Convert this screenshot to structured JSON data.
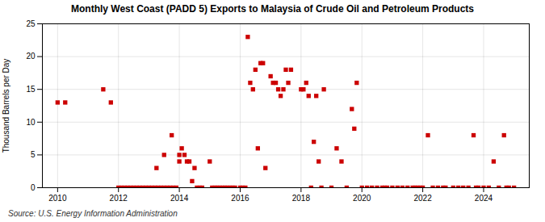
{
  "chart_data": {
    "type": "scatter",
    "title": "Monthly West Coast (PADD 5) Exports to Malaysia of Crude Oil and Petroleum Products",
    "ylabel": "Thousand Barrels per Day",
    "annotations": [
      "Source: U.S. Energy Information Administration"
    ],
    "color": "#cc0000",
    "marker": "square",
    "grid": true,
    "xlim": [
      2009.5,
      2025.5
    ],
    "ylim": [
      0,
      25
    ],
    "xticks": [
      2010,
      2012,
      2014,
      2016,
      2018,
      2020,
      2022,
      2024
    ],
    "yticks": [
      0,
      5,
      10,
      15,
      20,
      25
    ],
    "x": [
      2010.0,
      2010.25,
      2011.5,
      2011.75,
      2012.0,
      2012.1,
      2012.2,
      2012.3,
      2012.4,
      2012.5,
      2012.6,
      2012.7,
      2012.8,
      2012.9,
      2013.0,
      2013.1,
      2013.2,
      2013.3,
      2013.4,
      2013.5,
      2013.6,
      2013.7,
      2013.8,
      2013.9,
      2013.25,
      2013.5,
      2013.75,
      2014.0,
      2014.0,
      2014.08,
      2014.17,
      2014.25,
      2014.33,
      2014.42,
      2014.5,
      2014.58,
      2014.67,
      2014.75,
      2015.0,
      2015.08,
      2015.17,
      2015.25,
      2015.33,
      2015.42,
      2015.5,
      2015.58,
      2015.67,
      2015.75,
      2015.83,
      2016.0,
      2016.08,
      2016.17,
      2016.25,
      2016.33,
      2016.42,
      2016.5,
      2016.58,
      2016.67,
      2016.75,
      2016.83,
      2017.0,
      2017.08,
      2017.17,
      2017.25,
      2017.33,
      2017.42,
      2017.5,
      2017.58,
      2017.67,
      2018.0,
      2018.08,
      2018.17,
      2018.25,
      2018.33,
      2018.42,
      2018.5,
      2018.58,
      2018.67,
      2018.75,
      2019.0,
      2019.17,
      2019.33,
      2019.5,
      2019.67,
      2019.75,
      2019.83,
      2020.0,
      2020.17,
      2020.33,
      2020.5,
      2020.67,
      2020.75,
      2020.83,
      2021.0,
      2021.17,
      2021.33,
      2021.5,
      2021.67,
      2021.75,
      2021.83,
      2021.92,
      2022.0,
      2022.17,
      2022.33,
      2022.5,
      2022.67,
      2022.75,
      2023.0,
      2023.17,
      2023.33,
      2023.5,
      2023.67,
      2023.75,
      2023.83,
      2024.0,
      2024.17,
      2024.33,
      2024.5,
      2024.67,
      2024.75,
      2024.83,
      2025.0
    ],
    "values": [
      13,
      13,
      15,
      13,
      0,
      0,
      0,
      0,
      0,
      0,
      0,
      0,
      0,
      0,
      0,
      0,
      0,
      0,
      0,
      0,
      0,
      0,
      0,
      0,
      3,
      5,
      8,
      4,
      5,
      6,
      5,
      4,
      4,
      1,
      3,
      0,
      0,
      0,
      4,
      0,
      0,
      0,
      0,
      0,
      0,
      0,
      0,
      0,
      0,
      0,
      0,
      0,
      23,
      16,
      15,
      18,
      6,
      19,
      19,
      3,
      17,
      16,
      16,
      15,
      14,
      15,
      18,
      16,
      18,
      15,
      15,
      16,
      14,
      0,
      7,
      14,
      4,
      0,
      15,
      0,
      6,
      4,
      0,
      12,
      9,
      16,
      0,
      0,
      0,
      0,
      0,
      0,
      0,
      0,
      0,
      0,
      0,
      0,
      0,
      0,
      0,
      0,
      8,
      0,
      0,
      0,
      0,
      0,
      0,
      0,
      0,
      8,
      0,
      0,
      0,
      0,
      4,
      0,
      8,
      0,
      0,
      0
    ]
  }
}
